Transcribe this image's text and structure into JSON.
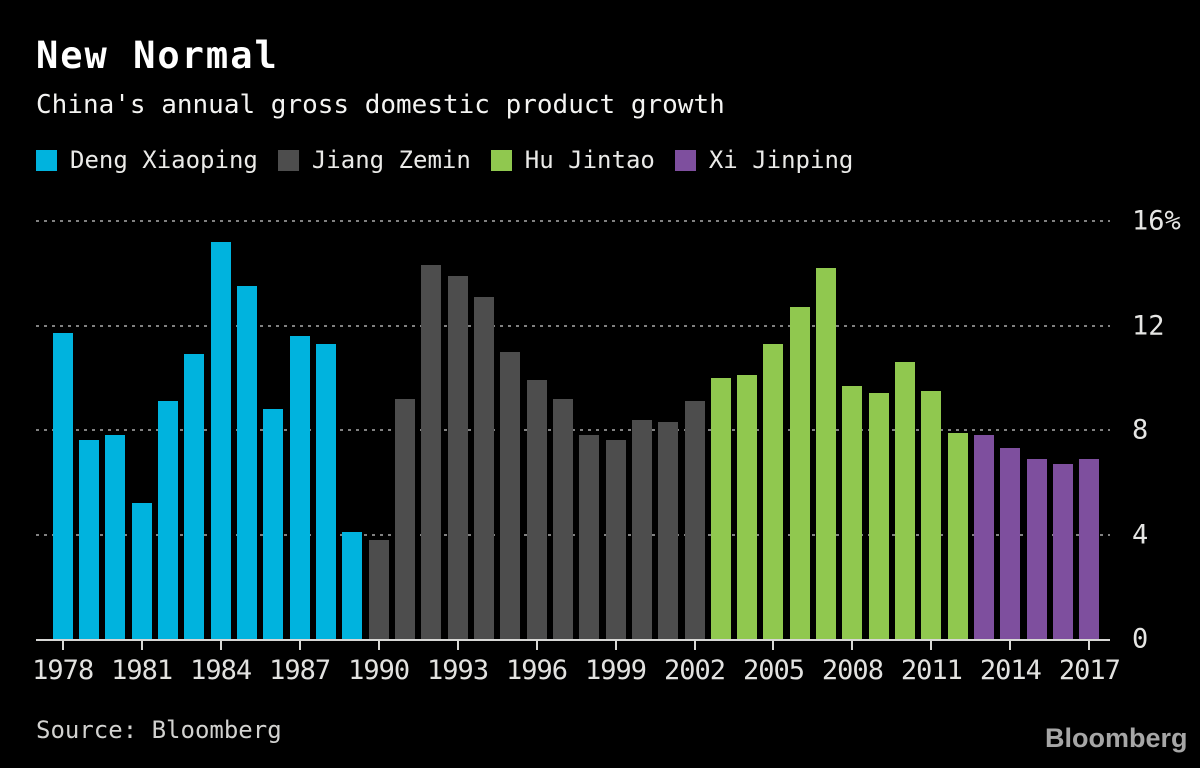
{
  "header": {
    "title": "New Normal",
    "subtitle": "China's annual gross domestic product growth"
  },
  "footer": {
    "source": "Source: Bloomberg",
    "logo": "Bloomberg"
  },
  "colors": {
    "background": "#000000",
    "deng_xiaoping": "#00b3de",
    "jiang_zemin": "#4d4d4d",
    "hu_jintao": "#90c84f",
    "xi_jinping": "#7e4f9e",
    "axis_line": "#d7d7d5",
    "grid_dots": "#818181"
  },
  "chart_data": {
    "type": "bar",
    "title": "New Normal",
    "subtitle": "China's annual gross domestic product growth",
    "xlabel": "",
    "ylabel": "%",
    "ylim": [
      0,
      16
    ],
    "grid": "horizontal-dotted",
    "legend_position": "top",
    "unit": "percent",
    "x_start_year": 1978,
    "x_end_year": 2017,
    "yticks": [
      {
        "value": 0,
        "label": "0"
      },
      {
        "value": 4,
        "label": "4"
      },
      {
        "value": 8,
        "label": "8"
      },
      {
        "value": 12,
        "label": "12"
      },
      {
        "value": 16,
        "label": "16%"
      }
    ],
    "xticks": [
      1978,
      1981,
      1984,
      1987,
      1990,
      1993,
      1996,
      1999,
      2002,
      2005,
      2008,
      2011,
      2014,
      2017
    ],
    "series": [
      {
        "name": "Deng Xiaoping",
        "color": "#00b3de",
        "years": [
          1978,
          1979,
          1980,
          1981,
          1982,
          1983,
          1984,
          1985,
          1986,
          1987,
          1988,
          1989
        ],
        "values": [
          11.7,
          7.6,
          7.8,
          5.2,
          9.1,
          10.9,
          15.2,
          13.5,
          8.8,
          11.6,
          11.3,
          4.1
        ]
      },
      {
        "name": "Jiang Zemin",
        "color": "#4d4d4d",
        "years": [
          1990,
          1991,
          1992,
          1993,
          1994,
          1995,
          1996,
          1997,
          1998,
          1999,
          2000,
          2001,
          2002
        ],
        "values": [
          3.8,
          9.2,
          14.3,
          13.9,
          13.1,
          11.0,
          9.9,
          9.2,
          7.8,
          7.6,
          8.4,
          8.3,
          9.1
        ]
      },
      {
        "name": "Hu Jintao",
        "color": "#90c84f",
        "years": [
          2003,
          2004,
          2005,
          2006,
          2007,
          2008,
          2009,
          2010,
          2011,
          2012
        ],
        "values": [
          10.0,
          10.1,
          11.3,
          12.7,
          14.2,
          9.7,
          9.4,
          10.6,
          9.5,
          7.9
        ]
      },
      {
        "name": "Xi Jinping",
        "color": "#7e4f9e",
        "years": [
          2013,
          2014,
          2015,
          2016,
          2017
        ],
        "values": [
          7.8,
          7.3,
          6.9,
          6.7,
          6.9
        ]
      }
    ]
  }
}
